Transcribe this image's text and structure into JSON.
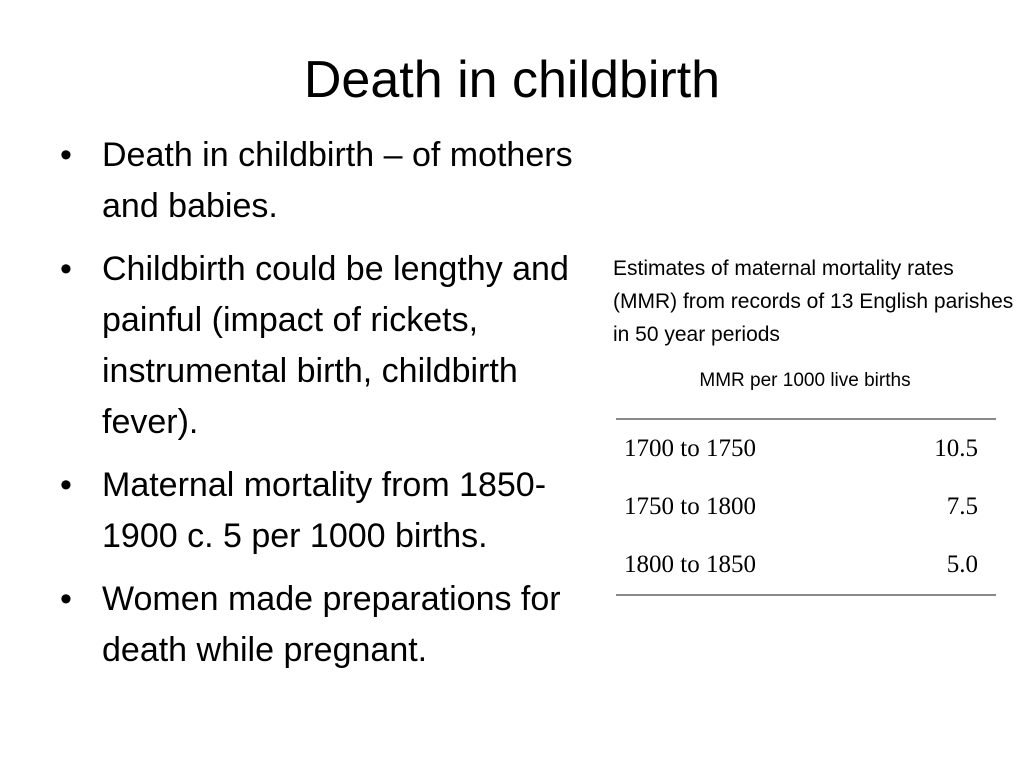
{
  "slide": {
    "title": "Death in childbirth"
  },
  "bullets": [
    {
      "text": "Death in childbirth – of mothers and babies."
    },
    {
      "text": "Childbirth could be lengthy and painful (impact of rickets, instrumental birth, childbirth fever)."
    },
    {
      "text": "Maternal mortality from 1850-1900 c. 5 per 1000 births."
    },
    {
      "text": "Women made preparations for death while pregnant."
    }
  ],
  "bullet_symbol": "•",
  "table_section": {
    "caption": "Estimates of maternal mortality rates (MMR) from records of 13 English parishes in 50 year periods",
    "column_label": "MMR per 1000 live births",
    "rows": [
      {
        "period": "1700 to 1750",
        "mmr": "10.5"
      },
      {
        "period": "1750 to 1800",
        "mmr": "7.5"
      },
      {
        "period": "1800 to 1850",
        "mmr": "5.0"
      }
    ]
  }
}
